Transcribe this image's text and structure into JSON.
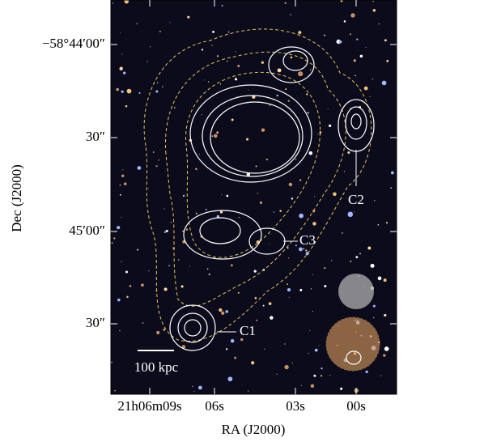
{
  "x_axis": {
    "label": "RA (J2000)",
    "ticks": [
      "21h06m09s",
      "06s",
      "03s",
      "00s"
    ]
  },
  "y_axis": {
    "label": "Dec (J2000)",
    "ticks": [
      "−58°44′00″",
      "30″",
      "45′00″",
      "30″"
    ]
  },
  "annotations": {
    "c1": "C1",
    "c2": "C2",
    "c3": "C3",
    "scale_bar": "100 kpc"
  }
}
